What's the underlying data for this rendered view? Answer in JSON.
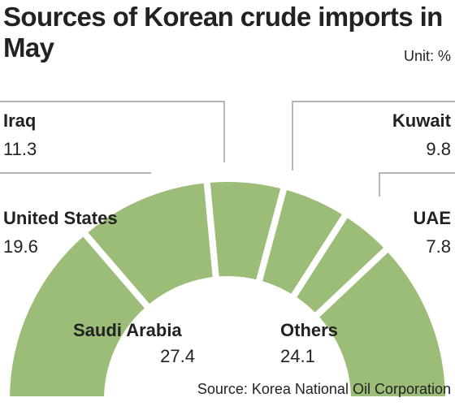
{
  "chart_data": {
    "type": "pie",
    "title": "Sources of Korean crude imports in May",
    "unit": "Unit: %",
    "source": "Source: Korea National Oil Corporation",
    "categories": [
      "Saudi Arabia",
      "United States",
      "Iraq",
      "Kuwait",
      "UAE",
      "Others"
    ],
    "values": [
      27.4,
      19.6,
      11.3,
      9.8,
      7.8,
      24.1
    ],
    "color": "#9cbd78"
  }
}
